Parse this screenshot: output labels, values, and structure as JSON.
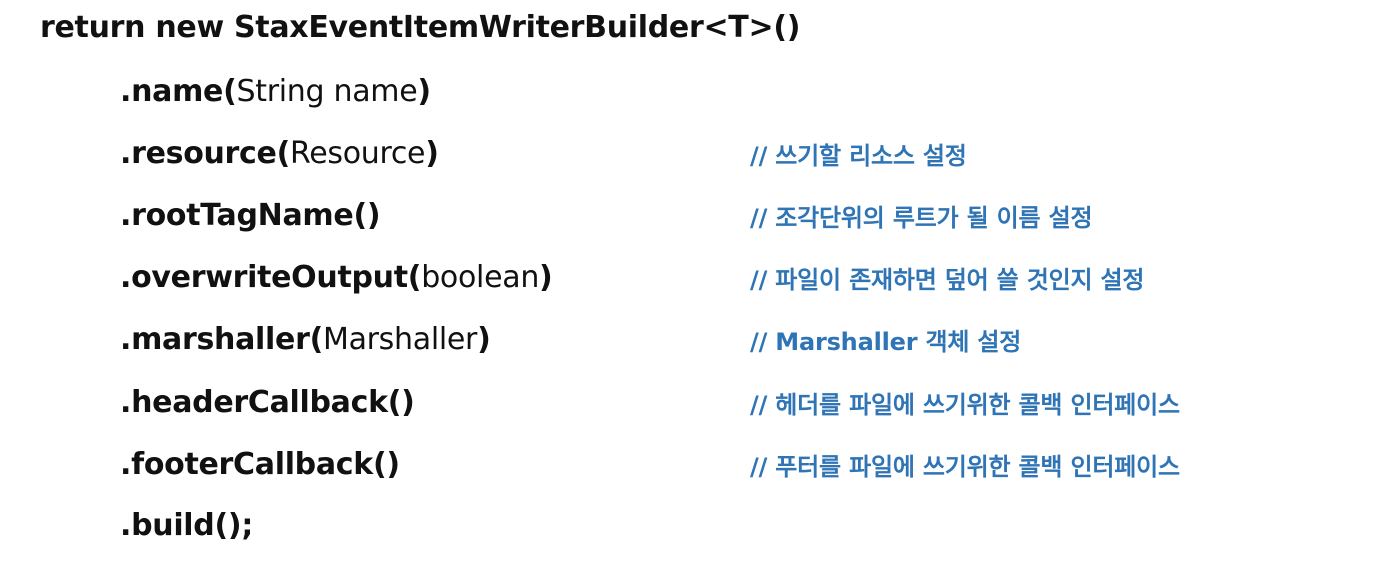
{
  "code": {
    "first_line": "return new StaxEventItemWriterBuilder<T>()",
    "lines": [
      {
        "method": ".name",
        "open": "(",
        "args": "String name",
        "close": ")",
        "comment": ""
      },
      {
        "method": ".resource",
        "open": "(",
        "args": "Resource",
        "close": ")",
        "comment": "// 쓰기할 리소스 설정"
      },
      {
        "method": ".rootTagName",
        "open": "(",
        "args": "",
        "close": ")",
        "comment": "// 조각단위의 루트가 될 이름 설정"
      },
      {
        "method": ".overwriteOutput",
        "open": "(",
        "args": "boolean",
        "close": ")",
        "comment": "// 파일이 존재하면 덮어 쓸 것인지 설정"
      },
      {
        "method": ".marshaller",
        "open": "(",
        "args": "Marshaller",
        "close": ")",
        "comment": "// Marshaller 객체 설정"
      },
      {
        "method": ".headerCallback",
        "open": "(",
        "args": "",
        "close": ")",
        "comment": "// 헤더를 파일에 쓰기위한 콜백 인터페이스"
      },
      {
        "method": ".footerCallback",
        "open": "(",
        "args": "",
        "close": ")",
        "comment": "// 푸터를 파일에 쓰기위한 콜백 인터페이스"
      },
      {
        "method": ".build",
        "open": "(",
        "args": "",
        "close": ");",
        "comment": ""
      }
    ]
  },
  "colors": {
    "code_text": "#111111",
    "comment_text": "#2f74b5",
    "background": "#ffffff"
  }
}
